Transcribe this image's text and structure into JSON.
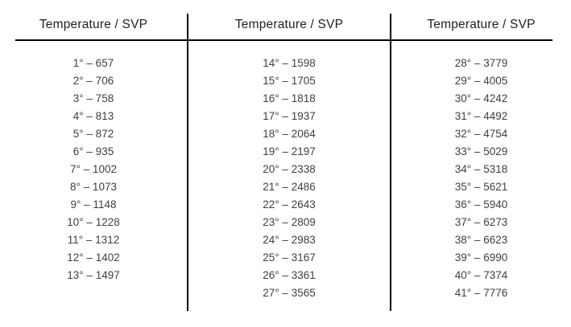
{
  "page": {
    "background_color": "#ffffff",
    "line_color": "#000000",
    "header_text_color": "#1f1f1f",
    "data_text_color": "#3f3f3f"
  },
  "table": {
    "columns": [
      {
        "header": "Temperature / SVP",
        "rows": [
          "1° – 657",
          "2° – 706",
          "3° – 758",
          "4° – 813",
          "5° – 872",
          "6° – 935",
          "7° – 1002",
          "8° – 1073",
          "9° – 1148",
          "10° – 1228",
          "11° – 1312",
          "12° – 1402",
          "13° – 1497"
        ]
      },
      {
        "header": "Temperature / SVP",
        "rows": [
          "14° – 1598",
          "15° – 1705",
          "16° – 1818",
          "17° – 1937",
          "18° – 2064",
          "19° – 2197",
          "20° – 2338",
          "21° – 2486",
          "22° – 2643",
          "23° – 2809",
          "24° – 2983",
          "25° – 3167",
          "26° – 3361",
          "27° – 3565"
        ]
      },
      {
        "header": "Temperature / SVP",
        "rows": [
          "28° – 3779",
          "29° – 4005",
          "30° – 4242",
          "31° – 4492",
          "32° – 4754",
          "33° – 5029",
          "34° – 5318",
          "35° – 5621",
          "36° – 5940",
          "37° – 6273",
          "38° – 6623",
          "39° – 6990",
          "40° – 7374",
          "41° – 7776"
        ]
      }
    ]
  }
}
